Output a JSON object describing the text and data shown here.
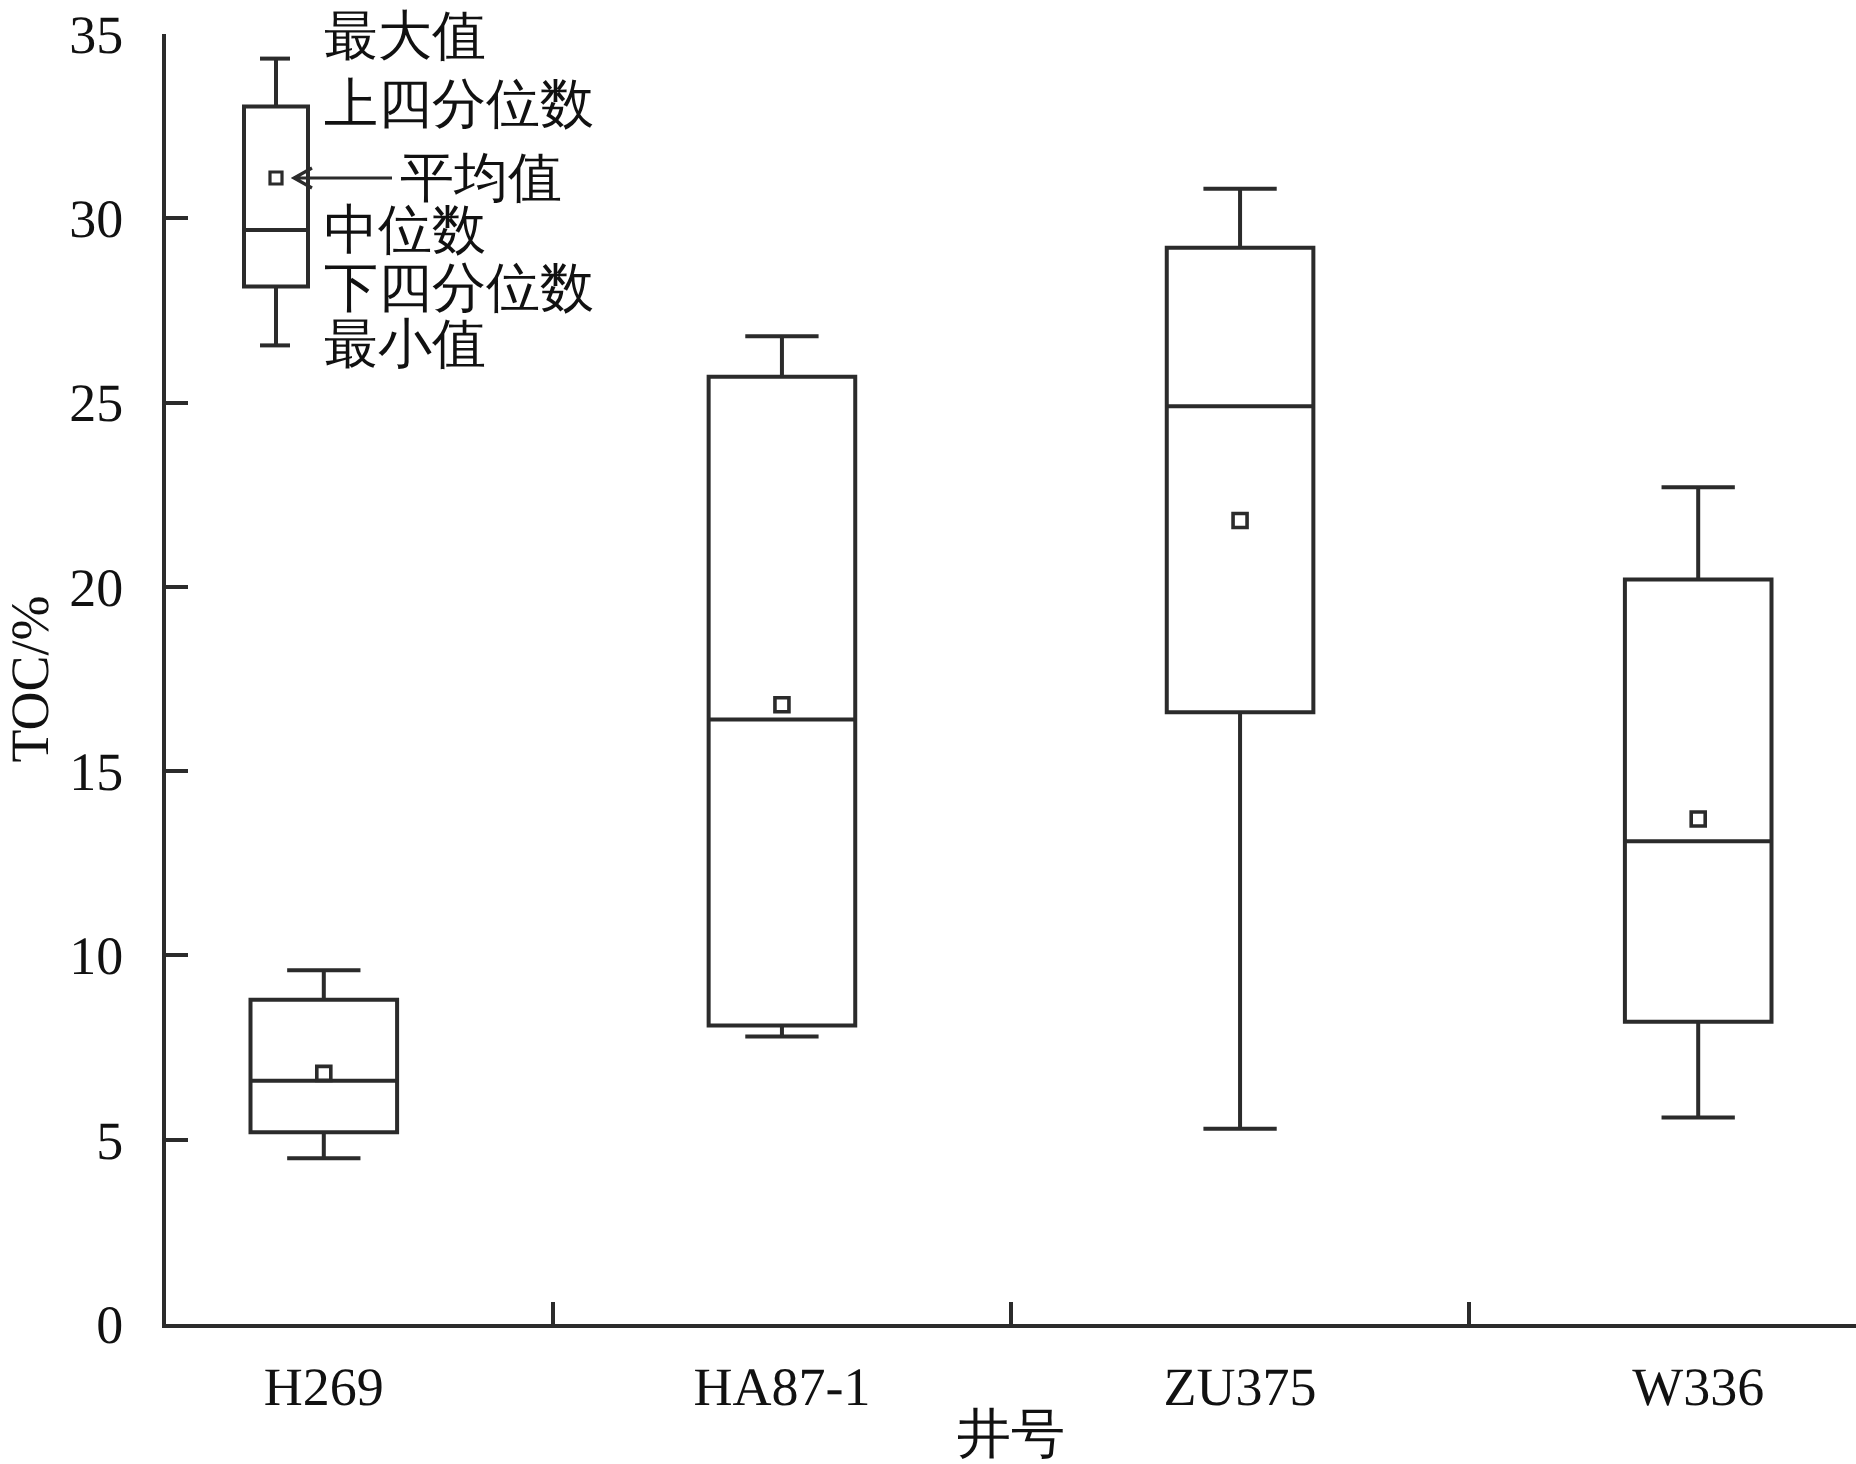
{
  "chart_data": {
    "type": "box",
    "xlabel": "井号",
    "ylabel": "TOC/%",
    "categories": [
      "H269",
      "HA87-1",
      "ZU375",
      "W336"
    ],
    "boxes": [
      {
        "low": 4.5,
        "q1": 5.2,
        "median": 6.6,
        "q3": 8.8,
        "high": 9.6,
        "mean": 6.8
      },
      {
        "low": 7.8,
        "q1": 8.1,
        "median": 16.4,
        "q3": 25.7,
        "high": 26.8,
        "mean": 16.8
      },
      {
        "low": 5.3,
        "q1": 16.6,
        "median": 24.9,
        "q3": 29.2,
        "high": 30.8,
        "mean": 21.8
      },
      {
        "low": 5.6,
        "q1": 8.2,
        "median": 13.1,
        "q3": 20.2,
        "high": 22.7,
        "mean": 13.7
      }
    ],
    "color": "#2b2b2b",
    "marker": "square",
    "ylim": [
      0,
      35
    ],
    "yticks": [
      0,
      5,
      10,
      15,
      20,
      25,
      30,
      35
    ],
    "annotations": [
      "最大值",
      "上四分位数",
      "平均值",
      "中位数",
      "下四分位数",
      "最小值"
    ]
  }
}
